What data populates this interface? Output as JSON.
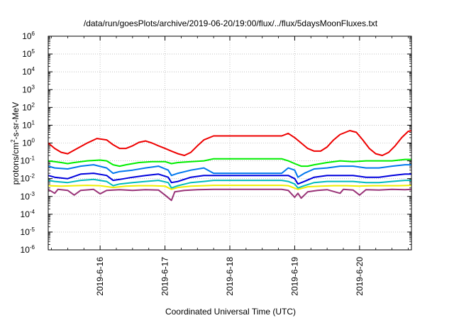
{
  "chart_data": {
    "type": "line",
    "title": "/data/run/goesPlots/archive/2019-06-20/19:00/flux/../flux/5daysMoonFluxes.txt",
    "xlabel": "Coordinated Universal Time (UTC)",
    "ylabel": {
      "base": "protons/cm",
      "sup": "2",
      "rest": "-s-sr-MeV"
    },
    "yscale": "log",
    "ylim_exp": [
      -6,
      6
    ],
    "ytick_labels": [
      {
        "exp": -6,
        "base": "10",
        "sup": "-6"
      },
      {
        "exp": -5,
        "base": "10",
        "sup": "-5"
      },
      {
        "exp": -4,
        "base": "10",
        "sup": "-4"
      },
      {
        "exp": -3,
        "base": "10",
        "sup": "-3"
      },
      {
        "exp": -2,
        "base": "10",
        "sup": "-2"
      },
      {
        "exp": -1,
        "base": "10",
        "sup": "-1"
      },
      {
        "exp": 0,
        "base": "10",
        "sup": "0"
      },
      {
        "exp": 1,
        "base": "10",
        "sup": "1"
      },
      {
        "exp": 2,
        "base": "10",
        "sup": "2"
      },
      {
        "exp": 3,
        "base": "10",
        "sup": "3"
      },
      {
        "exp": 4,
        "base": "10",
        "sup": "4"
      },
      {
        "exp": 5,
        "base": "10",
        "sup": "5"
      },
      {
        "exp": 6,
        "base": "10",
        "sup": "6"
      }
    ],
    "xlim_days": [
      15.2,
      20.8
    ],
    "xticks": [
      {
        "day": 16,
        "label": "2019-6-16"
      },
      {
        "day": 17,
        "label": "2019-6-17"
      },
      {
        "day": 18,
        "label": "2019-6-18"
      },
      {
        "day": 19,
        "label": "2019-6-19"
      },
      {
        "day": 20,
        "label": "2019-6-20"
      }
    ],
    "grid": true,
    "series": [
      {
        "color": "#ee0000",
        "points": [
          [
            15.2,
            1.0
          ],
          [
            15.3,
            0.5
          ],
          [
            15.4,
            0.3
          ],
          [
            15.5,
            0.25
          ],
          [
            15.6,
            0.4
          ],
          [
            15.8,
            1.0
          ],
          [
            15.95,
            1.8
          ],
          [
            16.1,
            1.5
          ],
          [
            16.2,
            0.8
          ],
          [
            16.3,
            0.5
          ],
          [
            16.4,
            0.5
          ],
          [
            16.5,
            0.7
          ],
          [
            16.6,
            1.1
          ],
          [
            16.7,
            1.3
          ],
          [
            16.8,
            1.0
          ],
          [
            16.9,
            0.7
          ],
          [
            17.0,
            0.5
          ],
          [
            17.1,
            0.35
          ],
          [
            17.2,
            0.25
          ],
          [
            17.3,
            0.2
          ],
          [
            17.4,
            0.3
          ],
          [
            17.5,
            0.7
          ],
          [
            17.6,
            1.5
          ],
          [
            17.75,
            2.5
          ],
          [
            18.8,
            2.5
          ],
          [
            18.9,
            3.5
          ],
          [
            19.0,
            2.0
          ],
          [
            19.1,
            1.0
          ],
          [
            19.2,
            0.5
          ],
          [
            19.3,
            0.35
          ],
          [
            19.4,
            0.35
          ],
          [
            19.5,
            0.6
          ],
          [
            19.6,
            1.5
          ],
          [
            19.7,
            3.0
          ],
          [
            19.85,
            5.0
          ],
          [
            19.95,
            4.0
          ],
          [
            20.05,
            1.5
          ],
          [
            20.15,
            0.5
          ],
          [
            20.25,
            0.25
          ],
          [
            20.35,
            0.2
          ],
          [
            20.45,
            0.3
          ],
          [
            20.55,
            0.7
          ],
          [
            20.65,
            2.0
          ],
          [
            20.75,
            4.5
          ],
          [
            20.8,
            5.0
          ]
        ]
      },
      {
        "color": "#00ee00",
        "points": [
          [
            15.2,
            0.1
          ],
          [
            15.3,
            0.09
          ],
          [
            15.4,
            0.08
          ],
          [
            15.5,
            0.07
          ],
          [
            15.6,
            0.08
          ],
          [
            15.8,
            0.1
          ],
          [
            16.0,
            0.11
          ],
          [
            16.1,
            0.1
          ],
          [
            16.2,
            0.06
          ],
          [
            16.3,
            0.05
          ],
          [
            16.4,
            0.06
          ],
          [
            16.6,
            0.08
          ],
          [
            16.8,
            0.09
          ],
          [
            17.0,
            0.09
          ],
          [
            17.1,
            0.07
          ],
          [
            17.2,
            0.08
          ],
          [
            17.4,
            0.09
          ],
          [
            17.6,
            0.1
          ],
          [
            17.75,
            0.13
          ],
          [
            18.8,
            0.13
          ],
          [
            18.9,
            0.1
          ],
          [
            19.0,
            0.07
          ],
          [
            19.1,
            0.05
          ],
          [
            19.2,
            0.05
          ],
          [
            19.3,
            0.06
          ],
          [
            19.5,
            0.08
          ],
          [
            19.7,
            0.1
          ],
          [
            19.9,
            0.09
          ],
          [
            20.1,
            0.1
          ],
          [
            20.3,
            0.1
          ],
          [
            20.5,
            0.1
          ],
          [
            20.7,
            0.12
          ],
          [
            20.8,
            0.12
          ]
        ]
      },
      {
        "color": "#0077ee",
        "points": [
          [
            15.2,
            0.05
          ],
          [
            15.3,
            0.04
          ],
          [
            15.5,
            0.035
          ],
          [
            15.7,
            0.05
          ],
          [
            15.9,
            0.06
          ],
          [
            16.1,
            0.04
          ],
          [
            16.2,
            0.02
          ],
          [
            16.3,
            0.025
          ],
          [
            16.5,
            0.03
          ],
          [
            16.7,
            0.04
          ],
          [
            16.9,
            0.05
          ],
          [
            17.05,
            0.03
          ],
          [
            17.1,
            0.015
          ],
          [
            17.2,
            0.02
          ],
          [
            17.4,
            0.03
          ],
          [
            17.6,
            0.04
          ],
          [
            17.75,
            0.02
          ],
          [
            18.8,
            0.02
          ],
          [
            18.9,
            0.04
          ],
          [
            19.0,
            0.03
          ],
          [
            19.05,
            0.012
          ],
          [
            19.15,
            0.02
          ],
          [
            19.3,
            0.035
          ],
          [
            19.5,
            0.04
          ],
          [
            19.7,
            0.05
          ],
          [
            19.9,
            0.05
          ],
          [
            20.1,
            0.04
          ],
          [
            20.3,
            0.04
          ],
          [
            20.5,
            0.05
          ],
          [
            20.7,
            0.06
          ],
          [
            20.8,
            0.06
          ]
        ]
      },
      {
        "color": "#0000dd",
        "points": [
          [
            15.2,
            0.015
          ],
          [
            15.3,
            0.012
          ],
          [
            15.5,
            0.01
          ],
          [
            15.7,
            0.018
          ],
          [
            15.9,
            0.02
          ],
          [
            16.1,
            0.015
          ],
          [
            16.2,
            0.008
          ],
          [
            16.3,
            0.009
          ],
          [
            16.5,
            0.012
          ],
          [
            16.7,
            0.015
          ],
          [
            16.9,
            0.018
          ],
          [
            17.05,
            0.012
          ],
          [
            17.1,
            0.006
          ],
          [
            17.2,
            0.007
          ],
          [
            17.4,
            0.012
          ],
          [
            17.6,
            0.015
          ],
          [
            17.75,
            0.015
          ],
          [
            18.8,
            0.015
          ],
          [
            18.9,
            0.015
          ],
          [
            19.0,
            0.01
          ],
          [
            19.05,
            0.005
          ],
          [
            19.15,
            0.007
          ],
          [
            19.3,
            0.012
          ],
          [
            19.5,
            0.015
          ],
          [
            19.7,
            0.015
          ],
          [
            19.9,
            0.015
          ],
          [
            20.1,
            0.012
          ],
          [
            20.3,
            0.012
          ],
          [
            20.5,
            0.015
          ],
          [
            20.7,
            0.018
          ],
          [
            20.8,
            0.018
          ]
        ]
      },
      {
        "color": "#00bbbb",
        "points": [
          [
            15.2,
            0.008
          ],
          [
            15.3,
            0.007
          ],
          [
            15.5,
            0.006
          ],
          [
            15.7,
            0.008
          ],
          [
            15.9,
            0.009
          ],
          [
            16.1,
            0.007
          ],
          [
            16.2,
            0.004
          ],
          [
            16.3,
            0.005
          ],
          [
            16.5,
            0.006
          ],
          [
            16.7,
            0.007
          ],
          [
            16.9,
            0.008
          ],
          [
            17.05,
            0.006
          ],
          [
            17.1,
            0.003
          ],
          [
            17.2,
            0.004
          ],
          [
            17.4,
            0.006
          ],
          [
            17.6,
            0.007
          ],
          [
            17.75,
            0.008
          ],
          [
            18.8,
            0.008
          ],
          [
            18.9,
            0.007
          ],
          [
            19.0,
            0.005
          ],
          [
            19.05,
            0.003
          ],
          [
            19.15,
            0.004
          ],
          [
            19.3,
            0.006
          ],
          [
            19.5,
            0.007
          ],
          [
            19.7,
            0.007
          ],
          [
            19.9,
            0.007
          ],
          [
            20.1,
            0.006
          ],
          [
            20.3,
            0.006
          ],
          [
            20.5,
            0.007
          ],
          [
            20.7,
            0.008
          ],
          [
            20.8,
            0.008
          ]
        ]
      },
      {
        "color": "#eeee00",
        "points": [
          [
            15.2,
            0.004
          ],
          [
            15.4,
            0.0038
          ],
          [
            15.6,
            0.004
          ],
          [
            15.8,
            0.0042
          ],
          [
            16.0,
            0.004
          ],
          [
            16.2,
            0.0032
          ],
          [
            16.4,
            0.0038
          ],
          [
            16.6,
            0.004
          ],
          [
            16.8,
            0.004
          ],
          [
            17.0,
            0.0038
          ],
          [
            17.1,
            0.0025
          ],
          [
            17.2,
            0.0032
          ],
          [
            17.4,
            0.0038
          ],
          [
            17.6,
            0.004
          ],
          [
            17.75,
            0.0042
          ],
          [
            18.8,
            0.0042
          ],
          [
            18.9,
            0.004
          ],
          [
            19.05,
            0.0025
          ],
          [
            19.2,
            0.0035
          ],
          [
            19.4,
            0.0038
          ],
          [
            19.6,
            0.004
          ],
          [
            19.8,
            0.004
          ],
          [
            20.0,
            0.0038
          ],
          [
            20.2,
            0.004
          ],
          [
            20.4,
            0.004
          ],
          [
            20.6,
            0.004
          ],
          [
            20.8,
            0.0042
          ]
        ]
      },
      {
        "color": "#993377",
        "points": [
          [
            15.2,
            0.0025
          ],
          [
            15.3,
            0.0015
          ],
          [
            15.35,
            0.0025
          ],
          [
            15.5,
            0.0022
          ],
          [
            15.6,
            0.0012
          ],
          [
            15.7,
            0.0022
          ],
          [
            15.9,
            0.0025
          ],
          [
            16.0,
            0.0014
          ],
          [
            16.1,
            0.0022
          ],
          [
            16.3,
            0.0024
          ],
          [
            16.5,
            0.0022
          ],
          [
            16.7,
            0.0024
          ],
          [
            16.9,
            0.0023
          ],
          [
            17.0,
            0.0012
          ],
          [
            17.1,
            0.0006
          ],
          [
            17.15,
            0.0018
          ],
          [
            17.3,
            0.0022
          ],
          [
            17.5,
            0.0024
          ],
          [
            17.75,
            0.0025
          ],
          [
            18.8,
            0.0025
          ],
          [
            18.9,
            0.0022
          ],
          [
            19.0,
            0.0009
          ],
          [
            19.05,
            0.0015
          ],
          [
            19.1,
            0.0008
          ],
          [
            19.2,
            0.0018
          ],
          [
            19.35,
            0.0022
          ],
          [
            19.5,
            0.0024
          ],
          [
            19.7,
            0.0015
          ],
          [
            19.75,
            0.0025
          ],
          [
            19.9,
            0.0023
          ],
          [
            20.0,
            0.0012
          ],
          [
            20.1,
            0.0024
          ],
          [
            20.3,
            0.0023
          ],
          [
            20.5,
            0.0025
          ],
          [
            20.7,
            0.0024
          ],
          [
            20.8,
            0.0025
          ]
        ]
      }
    ]
  }
}
